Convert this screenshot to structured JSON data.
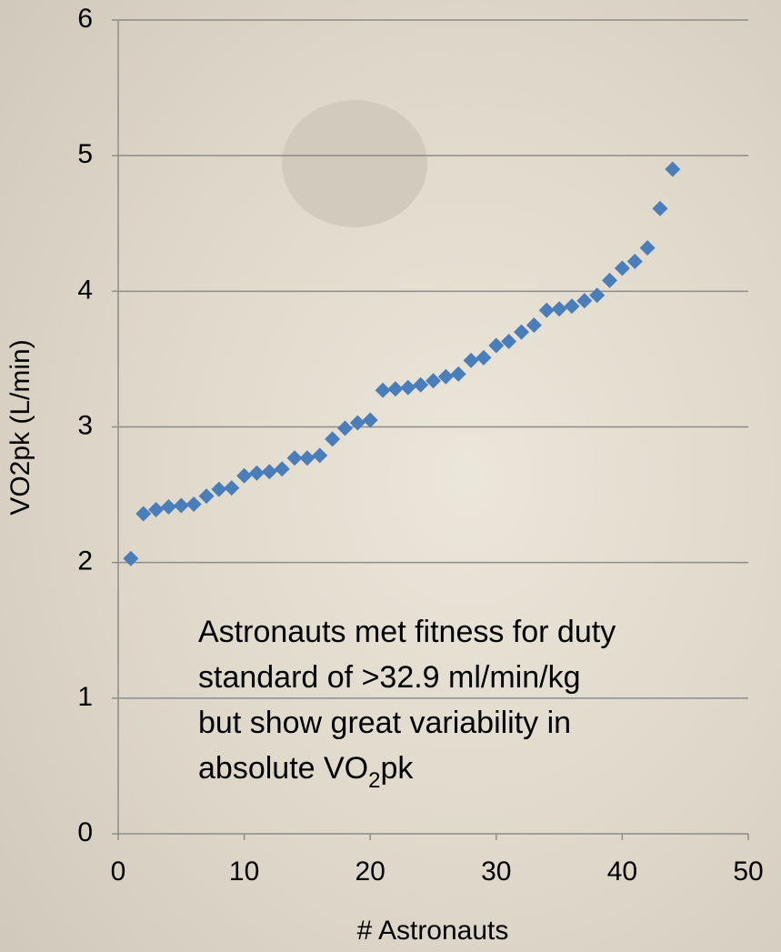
{
  "chart_data": {
    "type": "scatter",
    "x_label": "# Astronauts",
    "y_label": "VO2pk (L/min)",
    "annotation_lines": [
      "Astronauts met fitness for duty",
      "standard of >32.9 ml/min/kg",
      "but show great variability in"
    ],
    "annotation_tail": [
      "absolute VO",
      "2",
      "pk"
    ],
    "color": "#4a7ebb",
    "grid": true,
    "xlim": [
      0,
      50
    ],
    "xticks": [
      0,
      10,
      20,
      30,
      40,
      50
    ],
    "ylim": [
      0,
      6
    ],
    "yticks": [
      0,
      1,
      2,
      3,
      4,
      5,
      6
    ],
    "x": [
      1,
      2,
      3,
      4,
      5,
      6,
      7,
      8,
      9,
      10,
      11,
      12,
      13,
      14,
      15,
      16,
      17,
      18,
      19,
      20,
      21,
      22,
      23,
      24,
      25,
      26,
      27,
      28,
      29,
      30,
      31,
      32,
      33,
      34,
      35,
      36,
      37,
      38,
      39,
      40,
      41,
      42,
      43,
      44
    ],
    "values": [
      2.03,
      2.36,
      2.39,
      2.41,
      2.42,
      2.43,
      2.49,
      2.54,
      2.55,
      2.64,
      2.66,
      2.67,
      2.69,
      2.77,
      2.77,
      2.79,
      2.91,
      2.99,
      3.03,
      3.05,
      3.27,
      3.28,
      3.29,
      3.31,
      3.34,
      3.37,
      3.39,
      3.49,
      3.51,
      3.6,
      3.63,
      3.7,
      3.75,
      3.86,
      3.87,
      3.89,
      3.93,
      3.97,
      4.08,
      4.17,
      4.22,
      4.32,
      4.61,
      4.9
    ]
  }
}
